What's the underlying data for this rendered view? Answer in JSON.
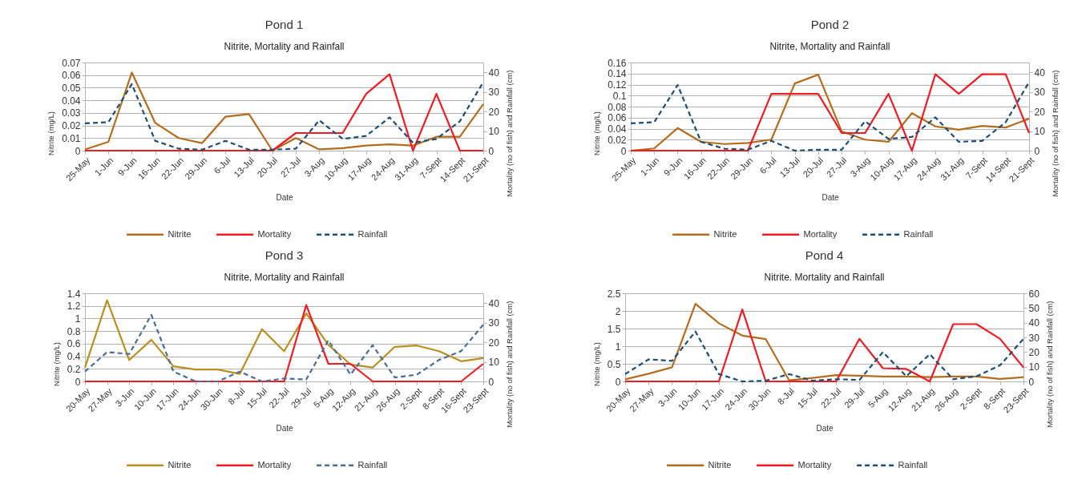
{
  "chart_data": [
    {
      "type": "line",
      "title": "Pond 1",
      "subtitle": "Nitrite, Mortality and Rainfall",
      "xlabel": "Date",
      "ylabel": "Nitrite (mg/L)",
      "y2label": "Mortality (no of fish) and Rainfall (cm)",
      "grid": "y",
      "legend": "bottom",
      "categories": [
        "25-May",
        "1-Jun",
        "9-Jun",
        "16-Jun",
        "22-Jun",
        "29-Jun",
        "6-Jul",
        "13-Jul",
        "20-Jul",
        "27-Jul",
        "3-Aug",
        "10-Aug",
        "17-Aug",
        "24-Aug",
        "31-Aug",
        "7-Sept",
        "14-Sept",
        "21-Sept"
      ],
      "ylim": [
        0,
        0.07
      ],
      "yticks": [
        0,
        0.01,
        0.02,
        0.03,
        0.04,
        0.05,
        0.06,
        0.07
      ],
      "y2lim": [
        0,
        45
      ],
      "y2ticks": [
        0,
        10,
        20,
        30,
        40
      ],
      "series": [
        {
          "name": "Nitrite",
          "color": "#b36d1f",
          "values": [
            0.001,
            0.007,
            0.062,
            0.022,
            0.01,
            0.006,
            0.027,
            0.029,
            0,
            0.01,
            0.001,
            0.002,
            0.004,
            0.005,
            0.004,
            0.011,
            0.011,
            0.037
          ]
        },
        {
          "name": "Mortality",
          "color": "#ee1c24",
          "axis": "y2",
          "values": [
            0,
            0,
            0,
            0,
            0,
            0,
            0,
            0,
            0,
            9,
            9,
            9,
            29,
            39,
            0,
            29,
            0,
            0
          ]
        },
        {
          "name": "Rainfall",
          "color": "#1d4e74",
          "axis": "y2",
          "line_style": "dashed",
          "values": [
            14,
            14.5,
            34,
            5,
            1,
            0.5,
            5,
            0.5,
            0.5,
            1,
            15.5,
            6,
            7.5,
            17,
            4,
            6,
            15,
            35
          ]
        }
      ]
    },
    {
      "type": "line",
      "title": "Pond 2",
      "subtitle": "Nitrite, Mortality and Rainfall",
      "xlabel": "Date",
      "ylabel": "Nitrite (mg/L)",
      "y2label": "Mortality (no of fish) and Rainfall (cm)",
      "grid": "y",
      "legend": "bottom",
      "categories": [
        "25-May",
        "1-Jun",
        "9-Jun",
        "16-Jun",
        "22-Jun",
        "29-Jun",
        "6-Jul",
        "13-Jul",
        "20-Jul",
        "27-Jul",
        "3-Aug",
        "10-Aug",
        "17-Aug",
        "24-Aug",
        "31-Aug",
        "7-Sept",
        "14-Sept",
        "21-Sept"
      ],
      "ylim": [
        0,
        0.16
      ],
      "yticks": [
        0,
        0.02,
        0.04,
        0.06,
        0.08,
        0.1,
        0.12,
        0.14,
        0.16
      ],
      "y2lim": [
        0,
        45
      ],
      "y2ticks": [
        0,
        10,
        20,
        30,
        40
      ],
      "series": [
        {
          "name": "Nitrite",
          "color": "#b36d1f",
          "values": [
            0,
            0.004,
            0.041,
            0.016,
            0.012,
            0.014,
            0.02,
            0.122,
            0.138,
            0.035,
            0.02,
            0.016,
            0.068,
            0.044,
            0.038,
            0.045,
            0.042,
            0.058
          ]
        },
        {
          "name": "Mortality",
          "color": "#ee1c24",
          "axis": "y2",
          "values": [
            0,
            0,
            0,
            0,
            0,
            0,
            29,
            29,
            29,
            9,
            9,
            29,
            0,
            39,
            29,
            39,
            39,
            9
          ]
        },
        {
          "name": "Rainfall",
          "color": "#1d4e74",
          "axis": "y2",
          "line_style": "dashed",
          "values": [
            14,
            14.5,
            33.5,
            4.5,
            1,
            0.5,
            5,
            0,
            0.5,
            0.5,
            15,
            6,
            7,
            17,
            4.5,
            5,
            14.5,
            35
          ]
        }
      ]
    },
    {
      "type": "line",
      "title": "Pond 3",
      "subtitle": "Nitrite, Mortality and Rainfall",
      "xlabel": "Date",
      "ylabel": "Nitrite (mg/L)",
      "y2label": "Mortality (no of fish) and Rainfall (cm)",
      "grid": "y",
      "legend": "bottom",
      "categories": [
        "20-May",
        "27-May",
        "3-Jun",
        "10-Jun",
        "17-Jun",
        "24-Jun",
        "30-Jun",
        "8-Jul",
        "15-Jul",
        "22-Jul",
        "29-Jul",
        "5-Aug",
        "12-Aug",
        "21-Aug",
        "26-Aug",
        "2-Sept",
        "8-Sept",
        "16-Sept",
        "23-Sept"
      ],
      "ylim": [
        0,
        1.4
      ],
      "yticks": [
        0,
        0.2,
        0.4,
        0.6,
        0.8,
        1,
        1.2,
        1.4
      ],
      "y2lim": [
        0,
        45
      ],
      "y2ticks": [
        0,
        10,
        20,
        30,
        40
      ],
      "series": [
        {
          "name": "Nitrite",
          "color": "#b8901f",
          "values": [
            0.22,
            1.29,
            0.34,
            0.66,
            0.24,
            0.19,
            0.19,
            0.12,
            0.83,
            0.48,
            1.08,
            0.58,
            0.27,
            0.22,
            0.55,
            0.57,
            0.48,
            0.32,
            0.37
          ]
        },
        {
          "name": "Mortality",
          "color": "#ee1c24",
          "axis": "y2",
          "values": [
            0,
            0,
            0,
            0,
            0,
            0,
            0,
            0,
            0,
            0,
            39,
            9,
            9,
            0,
            0,
            0,
            0,
            0,
            9
          ]
        },
        {
          "name": "Rainfall",
          "color": "#4a6e98",
          "axis": "y2",
          "line_style": "dashed",
          "values": [
            5,
            15,
            14,
            34,
            5,
            0,
            0,
            5,
            0,
            1.5,
            1,
            21,
            3.5,
            18.5,
            2,
            3.5,
            11,
            15.5,
            29
          ]
        }
      ]
    },
    {
      "type": "line",
      "title": "Pond 4",
      "subtitle": "Nitrite. Mortality and Rainfall",
      "xlabel": "Date",
      "ylabel": "Nitrite (mg/L)",
      "y2label": "Mortality (no of fish) and Rainfall (cm)",
      "grid": "y",
      "legend": "bottom",
      "categories": [
        "20-May",
        "27-May",
        "3-Jun",
        "10-Jun",
        "17-Jun",
        "24-Jun",
        "30-Jun",
        "8-Jul",
        "15-Jul",
        "22-Jul",
        "29-Jul",
        "5-Aug",
        "12-Aug",
        "21-Aug",
        "26-Aug",
        "2-Sept",
        "8-Sept",
        "23-Sept"
      ],
      "ylim": [
        0,
        2.5
      ],
      "yticks": [
        0,
        0.5,
        1,
        1.5,
        2,
        2.5
      ],
      "y2lim": [
        0,
        60
      ],
      "y2ticks": [
        0,
        10,
        20,
        30,
        40,
        50,
        60
      ],
      "series": [
        {
          "name": "Nitrite",
          "color": "#b36d1f",
          "values": [
            0.06,
            0.22,
            0.4,
            2.2,
            1.65,
            1.3,
            1.2,
            0.03,
            0.1,
            0.18,
            0.16,
            0.14,
            0.14,
            0.12,
            0.14,
            0.14,
            0.07,
            0.12
          ]
        },
        {
          "name": "Mortality",
          "color": "#ee1c24",
          "axis": "y2",
          "values": [
            0,
            0,
            0,
            0,
            0,
            49,
            0,
            0,
            0,
            0,
            29,
            9,
            8.5,
            0,
            39,
            39,
            29,
            9.5
          ]
        },
        {
          "name": "Rainfall",
          "color": "#1d4e74",
          "axis": "y2",
          "line_style": "dashed",
          "values": [
            5,
            15,
            14,
            34,
            5,
            0,
            0.5,
            5,
            0.5,
            1.5,
            1,
            20,
            3.5,
            18.5,
            1.5,
            3.5,
            11,
            29
          ]
        }
      ]
    }
  ]
}
